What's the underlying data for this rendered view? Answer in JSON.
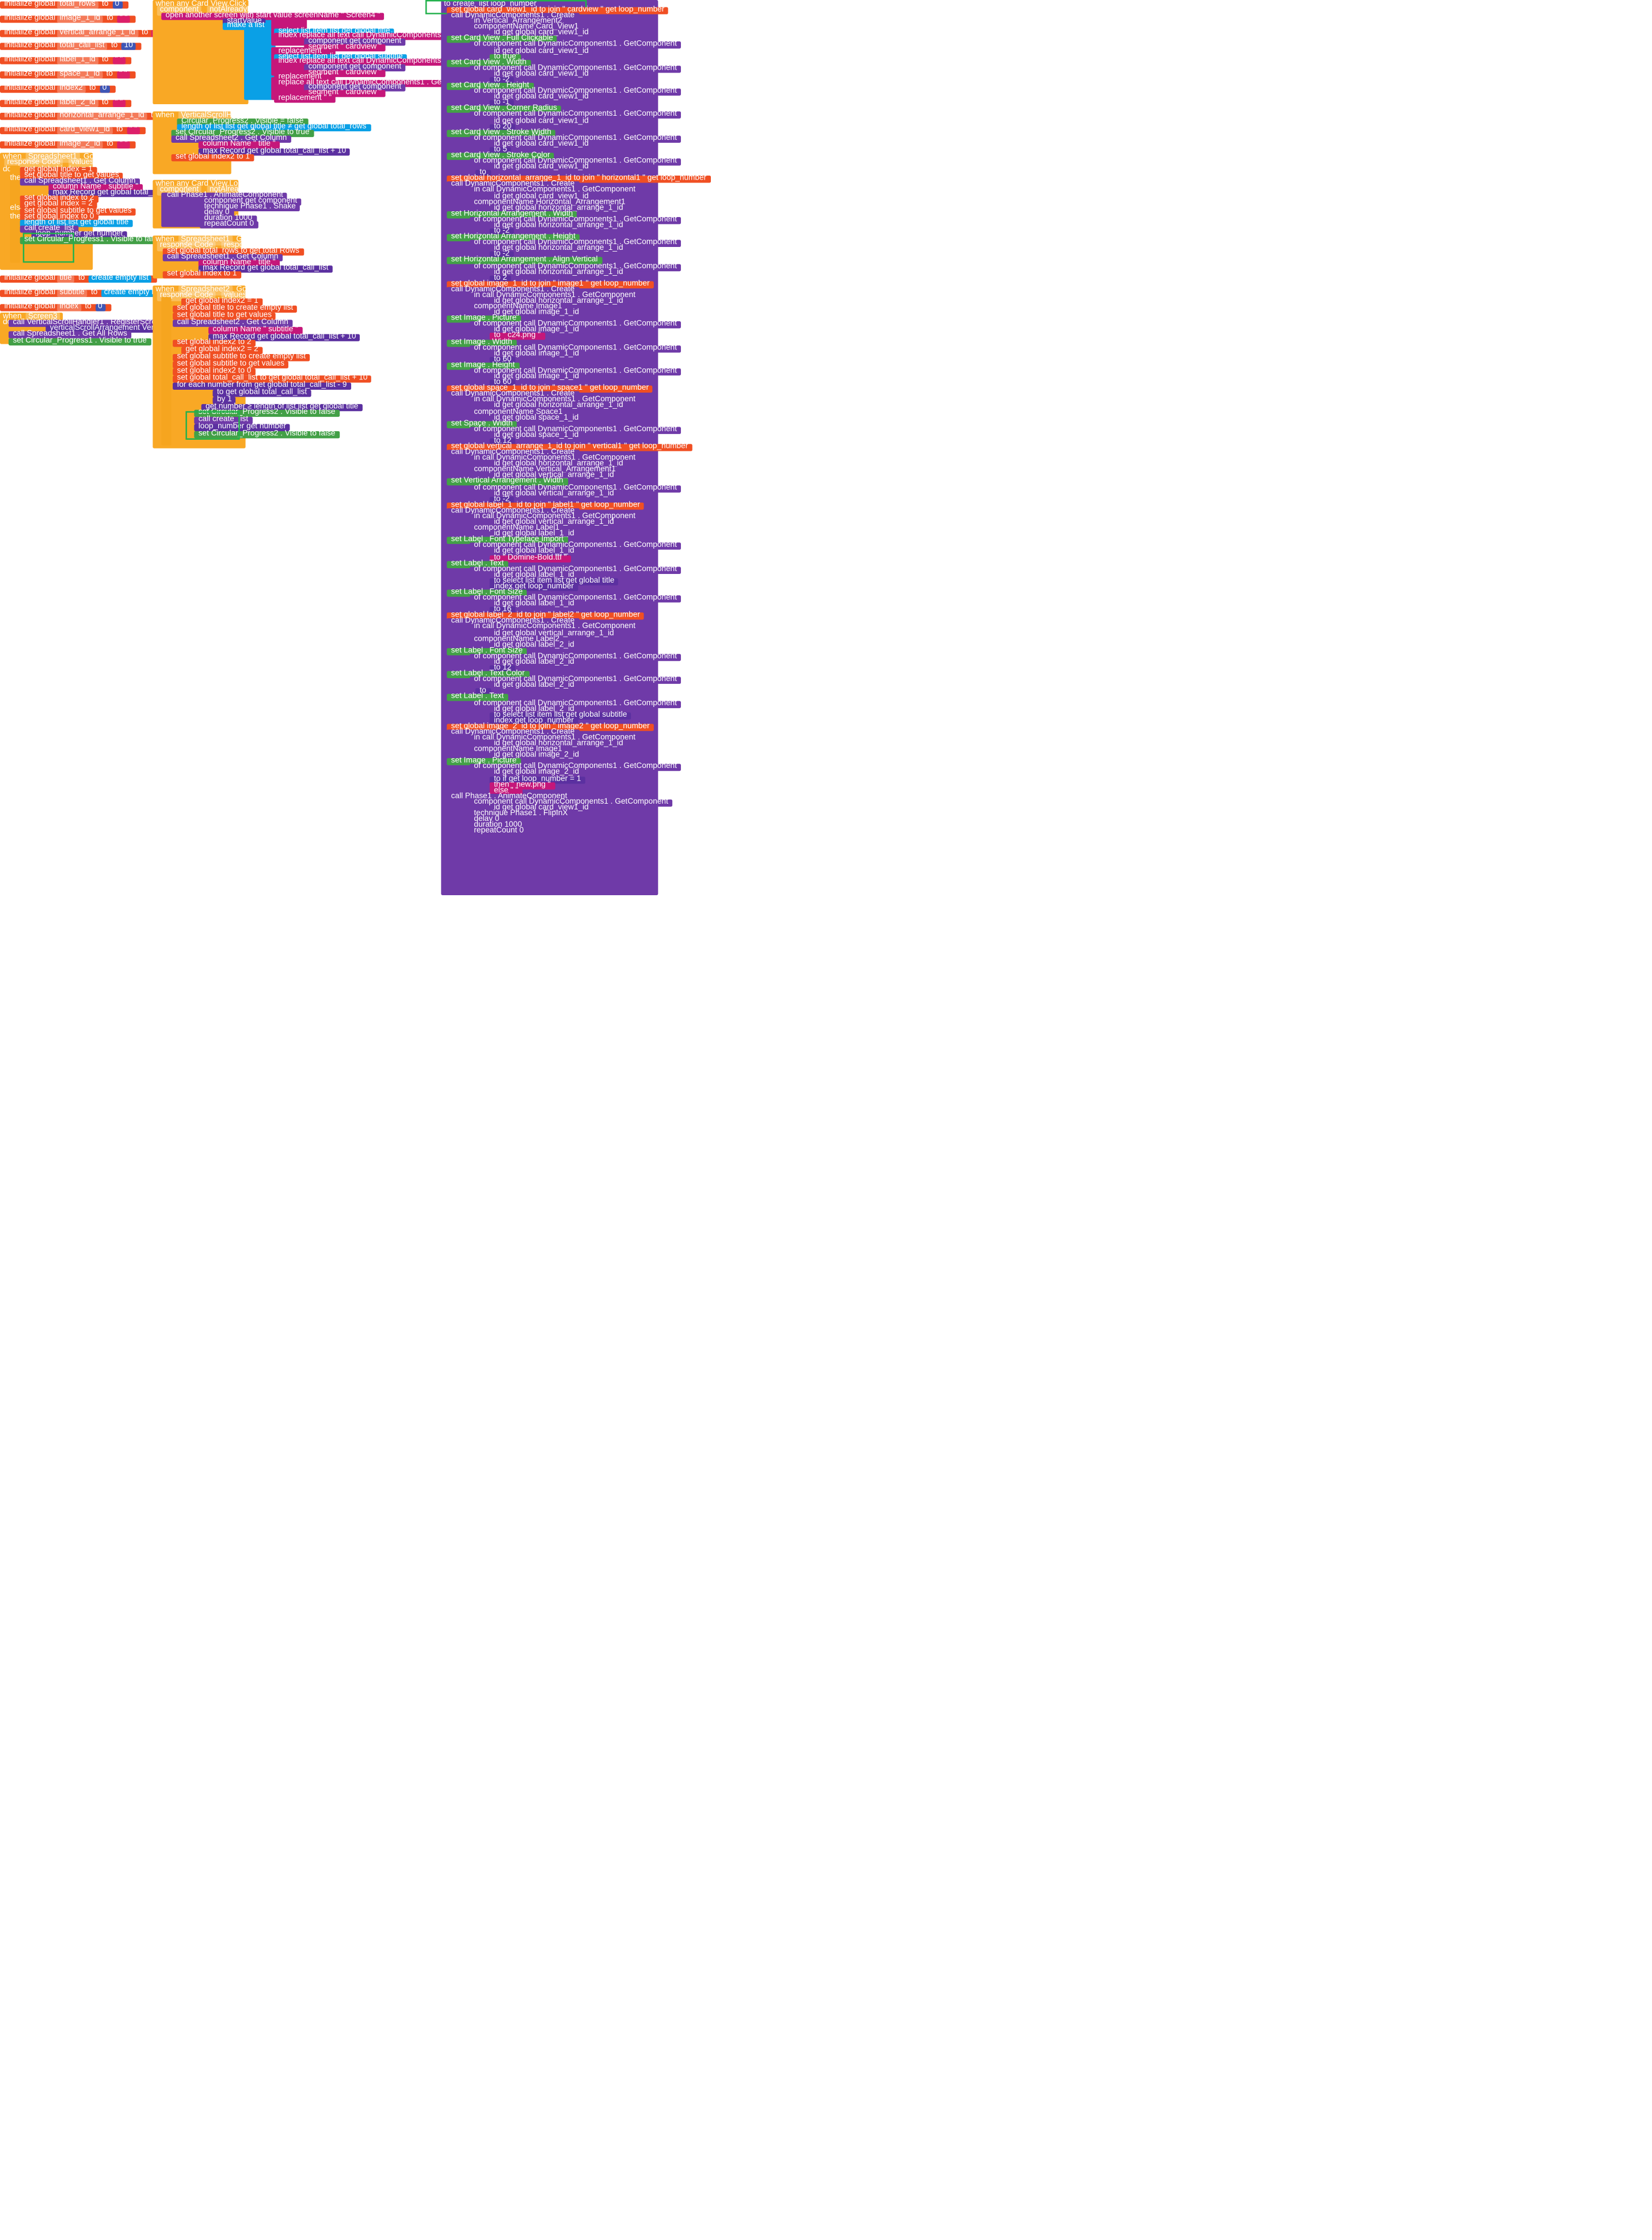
{
  "globals": [
    {
      "label": "initialize global",
      "name": "total_rows",
      "value": "0"
    },
    {
      "label": "initialize global",
      "name": "image_1_id",
      "value": "\" \""
    },
    {
      "label": "initialize global",
      "name": "vertical_arrange_1_id",
      "value": "\" \""
    },
    {
      "label": "initialize global",
      "name": "total_call_list",
      "value": "10"
    },
    {
      "label": "initialize global",
      "name": "label_1_id",
      "value": "\" \""
    },
    {
      "label": "initialize global",
      "name": "space_1_id",
      "value": "\" \""
    },
    {
      "label": "initialize global",
      "name": "index2",
      "value": "0"
    },
    {
      "label": "initialize global",
      "name": "label_2_id",
      "value": "\" \""
    },
    {
      "label": "initialize global",
      "name": "horizontal_arrange_1_id",
      "value": "\" \""
    },
    {
      "label": "initialize global",
      "name": "card_view1_id",
      "value": "\" \""
    },
    {
      "label": "initialize global",
      "name": "image_2_id",
      "value": "\" \""
    }
  ],
  "globals2": [
    {
      "label": "initialize global",
      "name": "title",
      "value": "create empty list"
    },
    {
      "label": "initialize global",
      "name": "subtitle",
      "value": "create empty list"
    },
    {
      "label": "initialize global",
      "name": "index",
      "value": "0"
    }
  ],
  "spreadsheet1": {
    "when": "when",
    "component": "Spreadsheet1",
    "event": "Got Column",
    "params": [
      "response Code",
      "values",
      "row Ids",
      "created Times"
    ],
    "do": "do",
    "if": "if",
    "then": "then",
    "elseif": "else if",
    "foreach": "for each",
    "number": "number",
    "from": "from",
    "to": "to",
    "by": "by",
    "rows": [
      "get global index = 1",
      "set global title to get values",
      "call Spreadsheet1 . Get Column",
      "column Name  \" subtitle \"",
      "max Record  get global total_call_list",
      "set global index to 2",
      "get global index = 2",
      "set global subtitle to get values",
      "set global index to 0",
      "length of list  list  get global title",
      "call create_list",
      "loop_number  get number",
      "set Circular_Progress1 . Visible to false"
    ],
    "one": "1"
  },
  "screen3": {
    "when": "when",
    "component": "Screen3",
    "event": "Initialize",
    "do": "do",
    "rows": [
      "call VerticalScrollHandler1 . RegisterScrollView",
      "verticalScrollArrangement  Vertical_Scroll_Arrangement1",
      "call Spreadsheet1 . Get All Rows",
      "set Circular_Progress1 . Visible to true"
    ]
  },
  "cardclick": {
    "title": "when any Card View.Click",
    "params": [
      "component",
      "notAlreadyHandled"
    ],
    "rows": [
      "open another screen with start value  screenName  \" Screen4 \"",
      "startValue",
      "make a list",
      "select list item  list  get global title",
      "index  replace all text  call DynamicComponents1 . GetId",
      "component  get component",
      "segment  \" cardview \"",
      "replacement  \" \"",
      "select list item  list  get global subtitle",
      "index  replace all text  call DynamicComponents1 . GetId",
      "component  get component",
      "segment  \" cardview \"",
      "replacement  \" \"",
      "replace all text  call DynamicComponents1 . GetId",
      "component  get component",
      "segment  \" cardview \"",
      "replacement  \" \""
    ]
  },
  "reachbottom": {
    "when": "when",
    "component": "VerticalScrollHandler1",
    "event": "ReachBottom",
    "rows": [
      "Circular_Progress2 . Visible = false",
      "length of list  list  get global title  ≠  get global total_rows",
      "set Circular_Progress2 . Visible to true",
      "call Spreadsheet2 . Get Column",
      "column Name  \" title \"",
      "max Record  get global total_call_list + 10",
      "set global index2 to 1"
    ]
  },
  "longclick": {
    "title": "when any Card View.Long Click",
    "params": [
      "component",
      "notAlreadyHandled"
    ],
    "rows": [
      "call Phase1 . AnimateComponent",
      "component  get component",
      "technique  Phase1 . Shake",
      "delay  0",
      "duration  1000",
      "repeatCount  0"
    ]
  },
  "gotallrows": {
    "when": "when",
    "component": "Spreadsheet1",
    "event": "Got All Rows",
    "params": [
      "response Code",
      "response Content",
      "total Rows"
    ],
    "rows": [
      "set global total_rows to get total Rows",
      "call Spreadsheet1 . Get Column",
      "column Name  \" title \"",
      "max Record  get global total_call_list",
      "set global index to 1"
    ]
  },
  "spreadsheet2": {
    "when": "when",
    "component": "Spreadsheet2",
    "event": "Got Column",
    "params": [
      "response Code",
      "values",
      "row Ids",
      "created Times"
    ],
    "rows": [
      "get global index2 = 1",
      "set global title to create empty list",
      "set global title to get values",
      "call Spreadsheet2 . Get Column",
      "column Name  \" subtitle \"",
      "max Record  get global total_call_list + 10",
      "set global index2 to 2",
      "get global index2 = 2",
      "set global subtitle to create empty list",
      "set global subtitle to get values",
      "set global index2 to 0",
      "set global total_call_list to get global total_call_list + 10",
      "for each number from get global total_call_list - 9",
      "to get global total_call_list",
      "by 1",
      "get number ≥ length of list list get global title",
      "set Circular_Progress2 . Visible to false",
      "call create_list",
      "loop_number  get number",
      "set Circular_Progress2 . Visible to false"
    ]
  },
  "createlist": {
    "header": "to create_list  loop_number",
    "rows": [
      "set global card_view1_id to join \" cardview \" get loop_number",
      "call DynamicComponents1 . Create",
      "in  Vertical_Arrangement2",
      "componentName  Card_View1",
      "id  get global card_view1_id",
      "set Card View . Full Clickable",
      "of component  call DynamicComponents1 . GetComponent",
      "id  get global card_view1_id",
      "to  true",
      "set Card View . Width",
      "of component  call DynamicComponents1 . GetComponent",
      "id  get global card_view1_id",
      "to  -2",
      "set Card View . Height",
      "of component  call DynamicComponents1 . GetComponent",
      "id  get global card_view1_id",
      "to  -1",
      "set Card View . Corner Radius",
      "of component  call DynamicComponents1 . GetComponent",
      "id  get global card_view1_id",
      "to  20",
      "set Card View . Stroke Width",
      "of component  call DynamicComponents1 . GetComponent",
      "id  get global card_view1_id",
      "to  5",
      "set Card View . Stroke Color",
      "of component  call DynamicComponents1 . GetComponent",
      "id  get global card_view1_id",
      "to",
      "set global horizontal_arrange_1_id to join \" horizontal1 \" get loop_number",
      "call DynamicComponents1 . Create",
      "in  call DynamicComponents1 . GetComponent",
      "id  get global card_view1_id",
      "componentName  Horizontal_Arrangement1",
      "id  get global horizontal_arrange_1_id",
      "set Horizontal Arrangement . Width",
      "of component  call DynamicComponents1 . GetComponent",
      "id  get global horizontal_arrange_1_id",
      "to  -2",
      "set Horizontal Arrangement . Height",
      "of component  call DynamicComponents1 . GetComponent",
      "id  get global horizontal_arrange_1_id",
      "to  -2",
      "set Horizontal Arrangement . Align Vertical",
      "of component  call DynamicComponents1 . GetComponent",
      "id  get global horizontal_arrange_1_id",
      "to  2",
      "set global image_1_id to join \" image1 \" get loop_number",
      "call DynamicComponents1 . Create",
      "in  call DynamicComponents1 . GetComponent",
      "id  get global horizontal_arrange_1_id",
      "componentName  Image1",
      "id  get global image_1_id",
      "set Image . Picture",
      "of component  call DynamicComponents1 . GetComponent",
      "id  get global image_1_id",
      "to  \" c24.png \"",
      "set Image . Width",
      "of component  call DynamicComponents1 . GetComponent",
      "id  get global image_1_id",
      "to  60",
      "set Image . Height",
      "of component  call DynamicComponents1 . GetComponent",
      "id  get global image_1_id",
      "to  60",
      "set global space_1_id to join \" space1 \" get loop_number",
      "call DynamicComponents1 . Create",
      "in  call DynamicComponents1 . GetComponent",
      "id  get global horizontal_arrange_1_id",
      "componentName  Space1",
      "id  get global space_1_id",
      "set Space . Width",
      "of component  call DynamicComponents1 . GetComponent",
      "id  get global space_1_id",
      "to  12",
      "set global vertical_arrange_1_id to join \" vertical1 \" get loop_number",
      "call DynamicComponents1 . Create",
      "in  call DynamicComponents1 . GetComponent",
      "id  get global horizontal_arrange_1_id",
      "componentName  Vertical_Arrangement1",
      "id  get global vertical_arrange_1_id",
      "set Vertical Arrangement . Width",
      "of component  call DynamicComponents1 . GetComponent",
      "id  get global vertical_arrange_1_id",
      "to  -2",
      "set global label_1_id to join \" label1 \" get loop_number",
      "call DynamicComponents1 . Create",
      "in  call DynamicComponents1 . GetComponent",
      "id  get global vertical_arrange_1_id",
      "componentName  Label1",
      "id  get global label_1_id",
      "set Label . Font Typeface Import",
      "of component  call DynamicComponents1 . GetComponent",
      "id  get global label_1_id",
      "to  \" Domine-Bold.ttf \"",
      "set Label . Text",
      "of component  call DynamicComponents1 . GetComponent",
      "id  get global label_1_id",
      "to  select list item  list  get global title",
      "index  get loop_number",
      "set Label . Font Size",
      "of component  call DynamicComponents1 . GetComponent",
      "id  get global label_1_id",
      "to  16",
      "set global label_2_id to join \" label2 \" get loop_number",
      "call DynamicComponents1 . Create",
      "in  call DynamicComponents1 . GetComponent",
      "id  get global vertical_arrange_1_id",
      "componentName  Label2",
      "id  get global label_2_id",
      "set Label . Font Size",
      "of component  call DynamicComponents1 . GetComponent",
      "id  get global label_2_id",
      "to  12",
      "set Label . Text Color",
      "of component  call DynamicComponents1 . GetComponent",
      "id  get global label_2_id",
      "to",
      "set Label . Text",
      "of component  call DynamicComponents1 . GetComponent",
      "id  get global label_2_id",
      "to  select list item  list  get global subtitle",
      "index  get loop_number",
      "set global image_2_id to join \" image2 \" get loop_number",
      "call DynamicComponents1 . Create",
      "in  call DynamicComponents1 . GetComponent",
      "id  get global horizontal_arrange_1_id",
      "componentName  Image1",
      "id  get global image_2_id",
      "set Image . Picture",
      "of component  call DynamicComponents1 . GetComponent",
      "id  get global image_2_id",
      "to  if  get loop_number = 1",
      "then  \" new.png \"",
      "else  \" \"",
      "call Phase1 . AnimateComponent",
      "component  call DynamicComponents1 . GetComponent",
      "id  get global card_view1_id",
      "technique  Phase1 . FlipInX",
      "delay  0",
      "duration  1000",
      "repeatCount  0"
    ]
  },
  "colors": {
    "variable": "#f04f23",
    "procedure": "#6f3aa8",
    "event": "#f9a825",
    "component": "#5b30a0",
    "list": "#0aa0e6",
    "logic": "#43a047",
    "math": "#3e56b6",
    "text": "#c5177a",
    "highlight": "#22b14c"
  }
}
